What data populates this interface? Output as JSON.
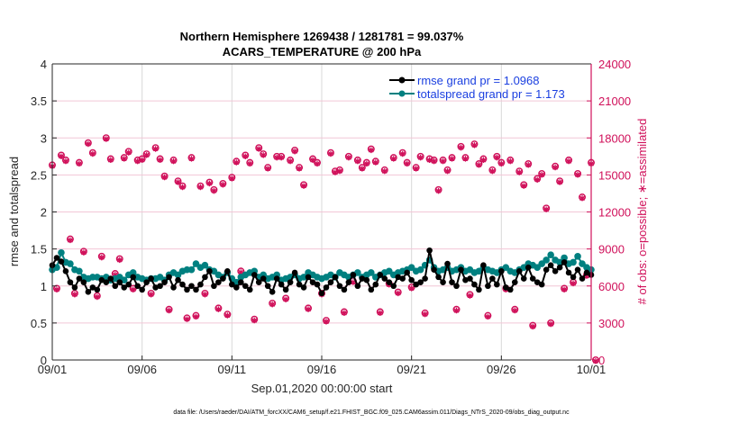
{
  "chart_data": {
    "type": "line",
    "title": "Northern Hemisphere 1269438 / 1281781 = 99.037%",
    "subtitle": "ACARS_TEMPERATURE @ 200 hPa",
    "xlabel": "Sep.01,2020 00:00:00 start",
    "ylabel": "rmse and totalspread",
    "ylabel_right": "# of obs: o=possible; ∗=assimilated",
    "footnote": "data file: /Users/raeder/DAI/ATM_forcXX/CAM6_setup/f.e21.FHIST_BGC.f09_025.CAM6assim.011/Diags_NTrS_2020-09/obs_diag_output.nc",
    "x_tick_labels": [
      "09/01",
      "09/06",
      "09/11",
      "09/16",
      "09/21",
      "09/26",
      "10/01"
    ],
    "x_range_days": [
      0,
      30
    ],
    "ylim": [
      0,
      4
    ],
    "y_ticks": [
      "0",
      "0.5",
      "1",
      "1.5",
      "2",
      "2.5",
      "3",
      "3.5",
      "4"
    ],
    "ylim_right": [
      0,
      24000
    ],
    "y_ticks_right": [
      "0",
      "3000",
      "6000",
      "9000",
      "12000",
      "15000",
      "18000",
      "21000",
      "24000"
    ],
    "grid": true,
    "legend_position": "top-right",
    "colors": {
      "rmse": "#000000",
      "totalspread": "#008080",
      "obs": "#d0105a",
      "legend_text": "#1a3fe0",
      "grid_h": "#f2c6d6",
      "grid_v": "#d9d9d9"
    },
    "series": [
      {
        "name": "rmse grand pr = 1.0968",
        "key": "rmse",
        "x_step_days": 0.25,
        "values": [
          1.28,
          1.38,
          1.33,
          1.2,
          1.05,
          0.98,
          1.1,
          1.05,
          0.92,
          0.98,
          0.95,
          1.08,
          1.05,
          1.1,
          1.0,
          1.05,
          0.98,
          1.02,
          1.12,
          1.0,
          0.95,
          1.05,
          1.1,
          0.98,
          1.0,
          1.05,
          1.12,
          0.98,
          1.08,
          1.02,
          0.95,
          1.0,
          0.95,
          1.02,
          1.12,
          1.2,
          1.0,
          1.05,
          1.1,
          1.2,
          1.02,
          0.98,
          1.05,
          1.0,
          0.95,
          1.15,
          1.05,
          1.1,
          1.0,
          0.92,
          1.1,
          1.02,
          0.95,
          1.05,
          1.18,
          1.02,
          0.98,
          1.12,
          1.05,
          1.02,
          0.9,
          0.98,
          1.05,
          1.12,
          1.0,
          0.95,
          1.05,
          1.15,
          1.0,
          1.1,
          1.08,
          0.95,
          1.02,
          1.15,
          1.1,
          1.05,
          1.0,
          1.12,
          1.1,
          1.18,
          1.08,
          1.02,
          1.05,
          1.1,
          1.48,
          1.22,
          1.12,
          1.05,
          1.3,
          1.05,
          1.0,
          1.22,
          1.08,
          1.1,
          1.02,
          0.95,
          1.28,
          1.0,
          1.1,
          1.02,
          1.2,
          0.98,
          0.95,
          1.05,
          1.2,
          1.1,
          1.25,
          1.1,
          1.05,
          1.02,
          1.22,
          1.28,
          1.2,
          1.25,
          1.32,
          1.18,
          1.12,
          1.22,
          1.1,
          1.18,
          1.15
        ]
      },
      {
        "name": "totalspread grand pr = 1.173",
        "key": "totalspread",
        "x_step_days": 0.25,
        "values": [
          1.22,
          1.25,
          1.45,
          1.32,
          1.3,
          1.22,
          1.2,
          1.12,
          1.1,
          1.12,
          1.12,
          1.1,
          1.12,
          1.08,
          1.1,
          1.12,
          1.08,
          1.15,
          1.18,
          1.12,
          1.1,
          1.08,
          1.1,
          1.1,
          1.12,
          1.08,
          1.15,
          1.18,
          1.15,
          1.2,
          1.22,
          1.22,
          1.3,
          1.25,
          1.28,
          1.22,
          1.2,
          1.15,
          1.12,
          1.18,
          1.1,
          1.05,
          1.12,
          1.15,
          1.18,
          1.2,
          1.12,
          1.15,
          1.1,
          1.12,
          1.15,
          1.08,
          1.1,
          1.12,
          1.15,
          1.1,
          1.12,
          1.18,
          1.15,
          1.12,
          1.1,
          1.12,
          1.15,
          1.12,
          1.18,
          1.15,
          1.12,
          1.15,
          1.18,
          1.12,
          1.15,
          1.18,
          1.12,
          1.15,
          1.18,
          1.2,
          1.15,
          1.18,
          1.2,
          1.22,
          1.25,
          1.2,
          1.22,
          1.28,
          1.35,
          1.25,
          1.2,
          1.22,
          1.25,
          1.2,
          1.22,
          1.25,
          1.2,
          1.22,
          1.18,
          1.2,
          1.25,
          1.22,
          1.2,
          1.18,
          1.22,
          1.25,
          1.2,
          1.18,
          1.22,
          1.25,
          1.3,
          1.28,
          1.25,
          1.3,
          1.35,
          1.42,
          1.35,
          1.32,
          1.38,
          1.3,
          1.32,
          1.4,
          1.3,
          1.25,
          1.22
        ]
      }
    ],
    "obs_counts": {
      "name": "# of obs",
      "x_step_days": 0.25,
      "values": [
        15800,
        5800,
        16600,
        16200,
        9800,
        5400,
        16000,
        8800,
        17600,
        16800,
        5200,
        8400,
        18000,
        16300,
        7000,
        8200,
        16400,
        16900,
        5800,
        16200,
        16300,
        16700,
        5400,
        17200,
        16300,
        14900,
        4100,
        16200,
        14500,
        14100,
        3400,
        16400,
        3600,
        14100,
        5400,
        14400,
        13800,
        4200,
        14300,
        3700,
        14800,
        16100,
        7200,
        16600,
        16000,
        3300,
        17200,
        16700,
        15600,
        4600,
        16500,
        16500,
        5000,
        16200,
        17000,
        15600,
        14200,
        4200,
        16300,
        16000,
        5400,
        3200,
        16800,
        15300,
        15400,
        3900,
        16500,
        6400,
        16200,
        15600,
        16000,
        17100,
        16100,
        3900,
        15400,
        6200,
        16400,
        5500,
        16800,
        16000,
        5900,
        15600,
        16500,
        3800,
        16300,
        16200,
        13800,
        16200,
        15400,
        16400,
        4100,
        17300,
        16400,
        5300,
        17500,
        15900,
        16300,
        3600,
        15400,
        16500,
        16000,
        5800,
        16200,
        4100,
        15300,
        14200,
        15900,
        2800,
        14700,
        15100,
        12300,
        3000,
        15700,
        14500,
        5800,
        16200,
        6300,
        15100,
        13200,
        6900,
        16000,
        0
      ]
    }
  }
}
